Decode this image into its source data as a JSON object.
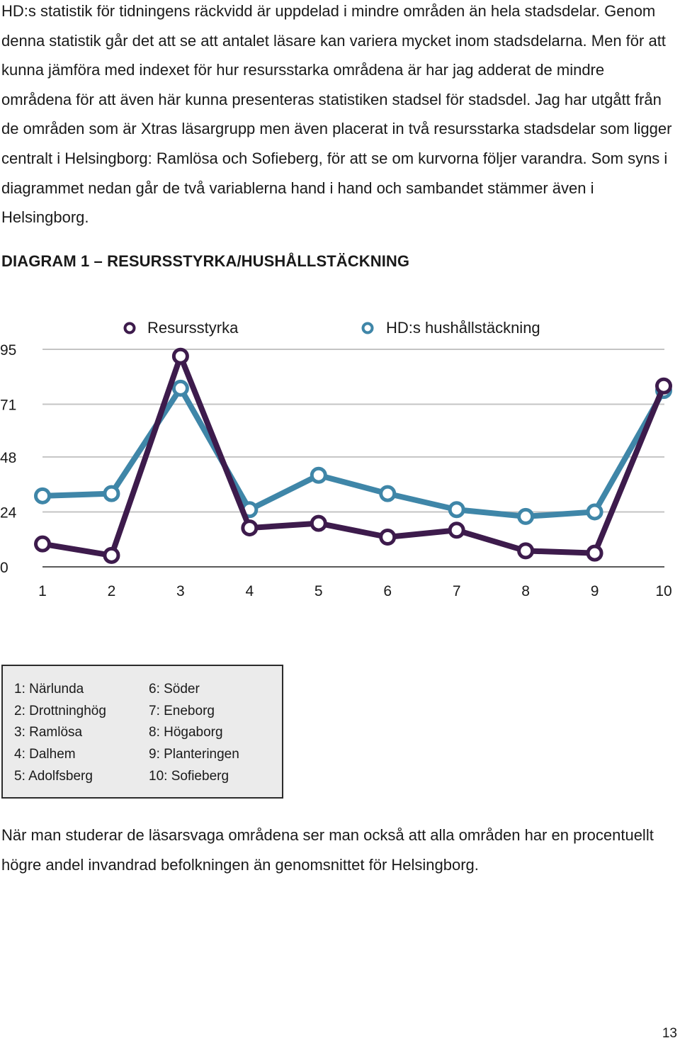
{
  "intro_paragraph": "HD:s statistik för tidningens räckvidd är uppdelad i mindre områden än hela stadsdelar. Genom denna statistik går det att se att antalet läsare kan variera mycket inom stadsdelarna. Men för att kunna jämföra med indexet för hur resursstarka områdena är har jag adderat de mindre områdena för att även här kunna presenteras statistiken stadsel för stadsdel. Jag har utgått från de områden som är Xtras läsargrupp men även placerat in två resursstarka stadsdelar som ligger centralt i Helsingborg: Ramlösa och Sofieberg, för att se om kurvorna följer varandra. Som syns i diagrammet nedan går de två variablerna hand i hand och sambandet stämmer även i Helsingborg.",
  "diagram_heading": "DIAGRAM 1 – RESURSSTYRKA/HUSHÅLLSTÄCKNING",
  "chart_data": {
    "type": "line",
    "title": "",
    "xlabel": "",
    "ylabel": "",
    "x": [
      1,
      2,
      3,
      4,
      5,
      6,
      7,
      8,
      9,
      10
    ],
    "x_tick_labels": [
      "1",
      "2",
      "3",
      "4",
      "5",
      "6",
      "7",
      "8",
      "9",
      "10"
    ],
    "y_tick_labels": [
      "0",
      "24",
      "48",
      "71",
      "95"
    ],
    "y_ticks": [
      0,
      24,
      48,
      71,
      95
    ],
    "ylim": [
      0,
      95
    ],
    "grid": "horizontal",
    "legend_position": "top",
    "series": [
      {
        "name": "Resursstyrka",
        "color": "#3d1b4c",
        "values": [
          10,
          5,
          92,
          17,
          19,
          13,
          16,
          7,
          6,
          79
        ]
      },
      {
        "name": "HD:s hushållstäckning",
        "color": "#3f86a8",
        "values": [
          31,
          32,
          78,
          25,
          40,
          32,
          25,
          22,
          24,
          77
        ]
      }
    ]
  },
  "area_legend": {
    "column_1": [
      "1: Närlunda",
      "2: Drottninghög",
      "3: Ramlösa",
      "4: Dalhem",
      "5: Adolfsberg"
    ],
    "column_2": [
      "6: Söder",
      "7: Eneborg",
      "8: Högaborg",
      "9: Planteringen",
      "10: Sofieberg"
    ]
  },
  "outro_paragraph": "När man studerar de läsarsvaga områdena ser man också att alla områden har en procentuellt högre andel invandrad befolkningen än genomsnittet för Helsingborg.",
  "page_number": "13"
}
